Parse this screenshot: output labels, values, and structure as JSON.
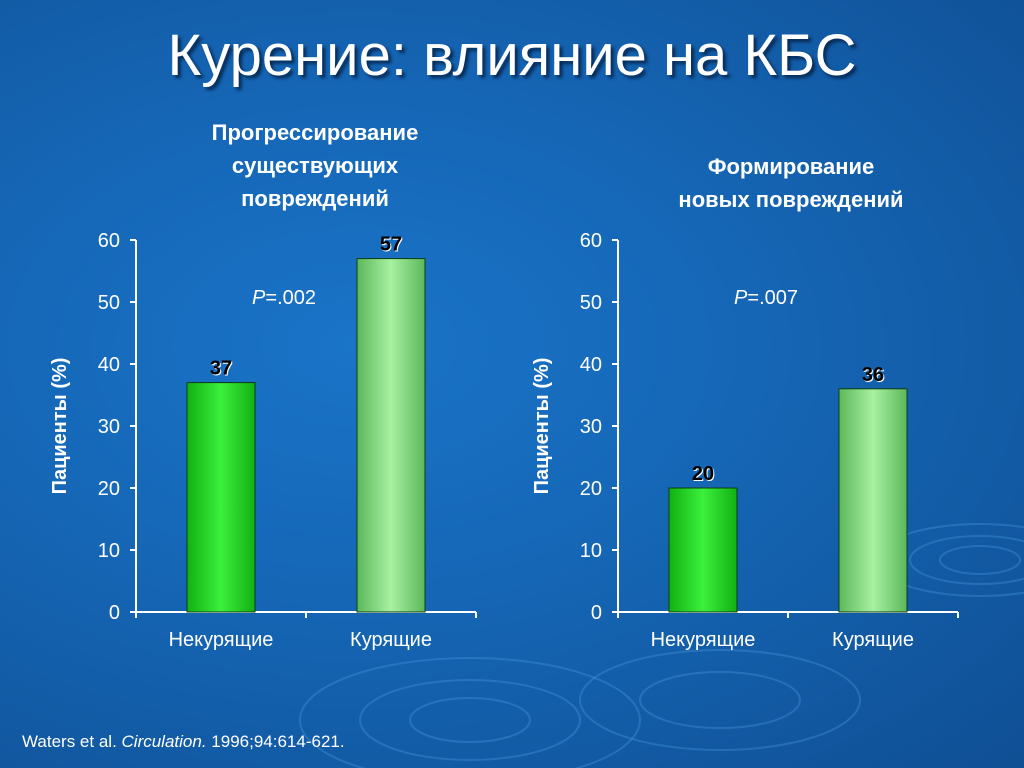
{
  "page": {
    "title": "Курение: влияние на КБС",
    "citation": {
      "prefix": "Waters et al. ",
      "journal": "Circulation.",
      "suffix": " 1996;94:614-621."
    }
  },
  "colors": {
    "bar_nonsmokers": "#22cc22",
    "bar_smokers": "#7ed47a",
    "background": "#1565b4"
  },
  "chart_data": [
    {
      "type": "bar",
      "title": "Прогрессирование\nсуществующих\nповреждений",
      "ylabel": "Пациенты (%)",
      "categories": [
        "Некурящие",
        "Курящие"
      ],
      "values": [
        37,
        57
      ],
      "ylim": [
        0,
        60
      ],
      "yticks": [
        0,
        10,
        20,
        30,
        40,
        50,
        60
      ],
      "annotation": {
        "italic": "P",
        "text": "=.002"
      }
    },
    {
      "type": "bar",
      "title": "Формирование\nновых повреждений",
      "ylabel": "Пациенты (%)",
      "categories": [
        "Некурящие",
        "Курящие"
      ],
      "values": [
        20,
        36
      ],
      "ylim": [
        0,
        60
      ],
      "yticks": [
        0,
        10,
        20,
        30,
        40,
        50,
        60
      ],
      "annotation": {
        "italic": "P",
        "text": "=.007"
      }
    }
  ]
}
